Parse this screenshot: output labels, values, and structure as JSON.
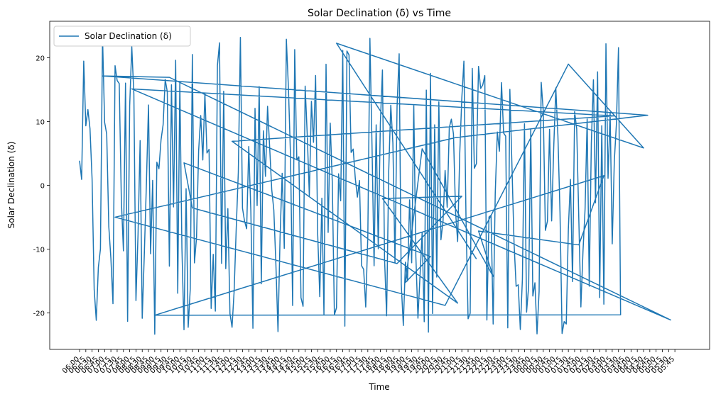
{
  "chart_data": {
    "type": "line",
    "title": "Solar Declination (δ) vs Time",
    "xlabel": "Time",
    "ylabel": "Solar Declination (δ)",
    "ylim": [
      -25.7,
      25.7
    ],
    "yticks": [
      -20,
      -10,
      0,
      10,
      20
    ],
    "grid": false,
    "legend_position": "upper left",
    "x_first": "06:00",
    "x_last": "05:55",
    "x_step_minutes": 5,
    "x_count": 288,
    "x_tick_every": 3,
    "series": [
      {
        "name": "Solar Declination (δ)",
        "color": "#1f77b4",
        "values_note_excluded": false,
        "seed": 42
      }
    ]
  }
}
